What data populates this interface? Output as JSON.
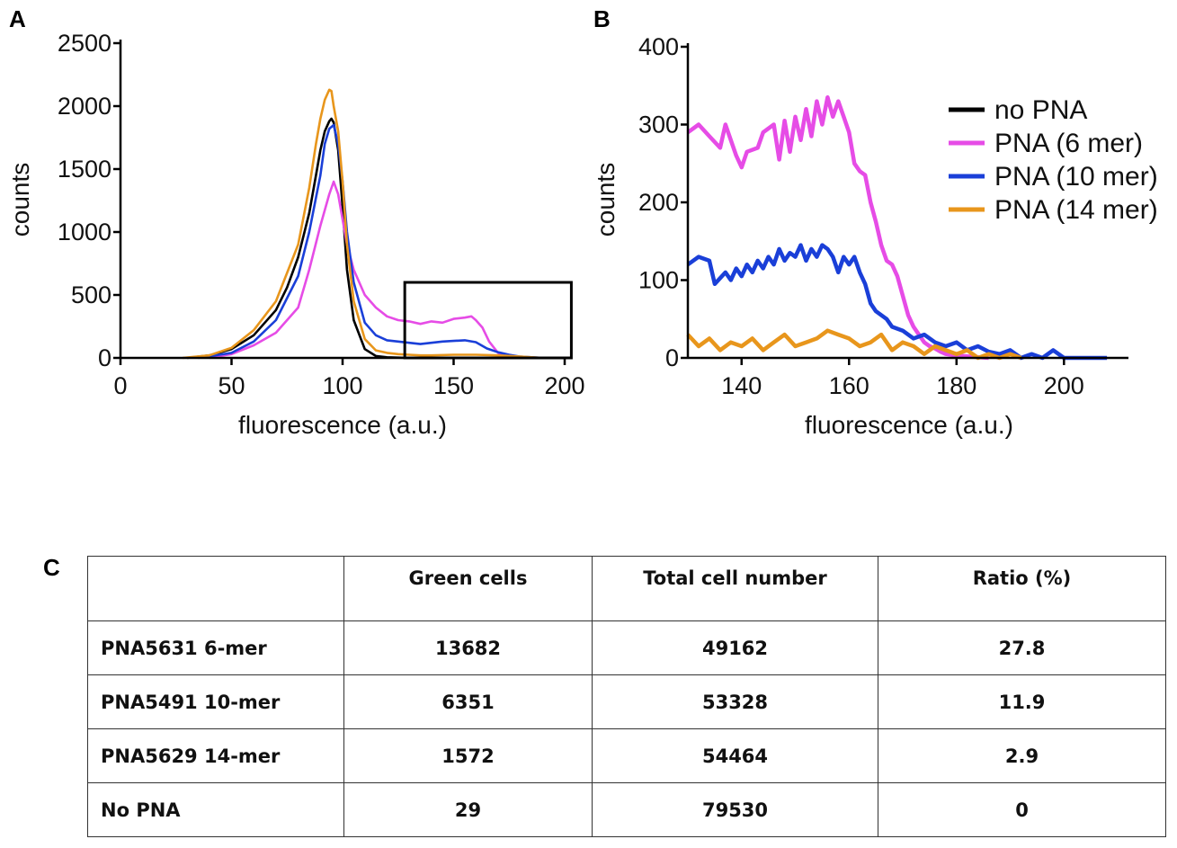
{
  "panels": {
    "a": "A",
    "b": "B",
    "c": "C"
  },
  "colors": {
    "no_pna": "#000000",
    "pna6": "#e64ce6",
    "pna10": "#1a3fd8",
    "pna14": "#e8961c"
  },
  "chart_data": [
    {
      "type": "line",
      "panel": "A",
      "title": "",
      "xlabel": "fluorescence (a.u.)",
      "ylabel": "counts",
      "xlim": [
        0,
        200
      ],
      "ylim": [
        0,
        2500
      ],
      "xticks": [
        0,
        50,
        100,
        150,
        200
      ],
      "yticks": [
        0,
        500,
        1000,
        1500,
        2000,
        2500
      ],
      "inset_box": {
        "x": [
          128,
          203
        ],
        "y": [
          0,
          600
        ]
      },
      "series": [
        {
          "name": "no PNA",
          "color": "#000000",
          "x": [
            30,
            40,
            50,
            60,
            70,
            75,
            80,
            85,
            88,
            90,
            92,
            94,
            95,
            96,
            98,
            100,
            102,
            105,
            110,
            115,
            120,
            125,
            130,
            140,
            150
          ],
          "y": [
            0,
            20,
            70,
            180,
            380,
            560,
            800,
            1150,
            1450,
            1650,
            1800,
            1880,
            1900,
            1870,
            1650,
            1200,
            700,
            300,
            70,
            15,
            5,
            2,
            0,
            0,
            0
          ]
        },
        {
          "name": "PNA (6 mer)",
          "color": "#e64ce6",
          "x": [
            40,
            50,
            60,
            70,
            80,
            85,
            90,
            94,
            96,
            98,
            100,
            102,
            105,
            110,
            115,
            120,
            125,
            130,
            135,
            140,
            145,
            150,
            155,
            158,
            160,
            163,
            166,
            170,
            175,
            180
          ],
          "y": [
            0,
            30,
            100,
            200,
            400,
            700,
            1050,
            1300,
            1400,
            1300,
            1100,
            900,
            700,
            500,
            400,
            330,
            300,
            290,
            270,
            290,
            280,
            310,
            320,
            330,
            300,
            240,
            130,
            40,
            5,
            0
          ]
        },
        {
          "name": "PNA (10 mer)",
          "color": "#1a3fd8",
          "x": [
            35,
            50,
            60,
            70,
            80,
            85,
            90,
            92,
            94,
            96,
            98,
            100,
            102,
            105,
            110,
            115,
            120,
            125,
            130,
            135,
            140,
            145,
            150,
            155,
            160,
            165,
            170,
            175,
            180,
            190,
            205
          ],
          "y": [
            0,
            40,
            130,
            300,
            650,
            1000,
            1450,
            1700,
            1820,
            1850,
            1700,
            1400,
            1000,
            600,
            280,
            180,
            140,
            130,
            120,
            110,
            120,
            130,
            135,
            140,
            125,
            75,
            45,
            25,
            10,
            0,
            0
          ]
        },
        {
          "name": "PNA (14 mer)",
          "color": "#e8961c",
          "x": [
            28,
            40,
            50,
            60,
            70,
            80,
            85,
            88,
            90,
            92,
            94,
            95,
            96,
            98,
            100,
            102,
            105,
            110,
            115,
            120,
            125,
            130,
            135,
            140,
            150,
            160,
            170,
            180,
            190
          ],
          "y": [
            0,
            20,
            80,
            220,
            450,
            900,
            1350,
            1700,
            1900,
            2050,
            2130,
            2120,
            2000,
            1800,
            1400,
            900,
            450,
            150,
            60,
            40,
            30,
            25,
            20,
            20,
            25,
            25,
            20,
            10,
            0
          ]
        }
      ]
    },
    {
      "type": "line",
      "panel": "B",
      "title": "",
      "xlabel": "fluorescence (a.u.)",
      "ylabel": "counts",
      "xlim": [
        130,
        212
      ],
      "ylim": [
        0,
        400
      ],
      "xticks": [
        140,
        160,
        180,
        200
      ],
      "yticks": [
        0,
        100,
        200,
        300,
        400
      ],
      "legend": "top-right",
      "series": [
        {
          "name": "no PNA",
          "color": "#000000",
          "x": [],
          "y": []
        },
        {
          "name": "PNA (6 mer)",
          "color": "#e64ce6",
          "x": [
            130,
            132,
            134,
            136,
            137,
            139,
            140,
            141,
            143,
            144,
            146,
            147,
            148,
            149,
            150,
            151,
            152,
            153,
            154,
            155,
            156,
            157,
            158,
            159,
            160,
            161,
            162,
            163,
            164,
            165,
            166,
            167,
            168,
            169,
            170,
            171,
            172,
            173,
            174,
            175,
            176,
            177,
            178,
            180,
            182,
            184,
            186
          ],
          "y": [
            290,
            300,
            285,
            270,
            300,
            260,
            245,
            265,
            270,
            290,
            300,
            255,
            305,
            265,
            310,
            280,
            320,
            285,
            330,
            300,
            335,
            310,
            330,
            310,
            290,
            250,
            240,
            235,
            200,
            175,
            145,
            125,
            120,
            105,
            80,
            55,
            40,
            30,
            20,
            15,
            12,
            8,
            5,
            3,
            2,
            1,
            0
          ]
        },
        {
          "name": "PNA (10 mer)",
          "color": "#1a3fd8",
          "x": [
            130,
            132,
            134,
            135,
            137,
            138,
            139,
            140,
            141,
            142,
            143,
            144,
            145,
            146,
            147,
            148,
            149,
            150,
            151,
            152,
            153,
            154,
            155,
            156,
            157,
            158,
            159,
            160,
            161,
            162,
            163,
            164,
            165,
            166,
            167,
            168,
            170,
            172,
            174,
            176,
            178,
            180,
            182,
            184,
            186,
            188,
            190,
            192,
            194,
            196,
            198,
            200,
            202,
            204,
            208
          ],
          "y": [
            120,
            130,
            125,
            95,
            110,
            100,
            115,
            105,
            120,
            110,
            125,
            115,
            130,
            120,
            140,
            125,
            135,
            130,
            145,
            125,
            140,
            130,
            145,
            140,
            130,
            110,
            130,
            120,
            130,
            110,
            95,
            70,
            60,
            55,
            50,
            40,
            35,
            25,
            30,
            20,
            15,
            20,
            10,
            15,
            8,
            5,
            10,
            0,
            5,
            0,
            10,
            0,
            0,
            0,
            0
          ]
        },
        {
          "name": "PNA (14 mer)",
          "color": "#e8961c",
          "x": [
            130,
            132,
            134,
            136,
            138,
            140,
            142,
            144,
            146,
            148,
            150,
            152,
            154,
            156,
            158,
            160,
            162,
            164,
            166,
            168,
            170,
            172,
            174,
            176,
            178,
            180,
            182,
            184,
            186,
            188,
            190,
            192
          ],
          "y": [
            30,
            15,
            25,
            10,
            20,
            15,
            25,
            10,
            20,
            30,
            15,
            20,
            25,
            35,
            30,
            25,
            15,
            20,
            30,
            10,
            20,
            15,
            5,
            15,
            10,
            5,
            10,
            0,
            5,
            0,
            5,
            0
          ]
        }
      ]
    },
    {
      "type": "table",
      "panel": "C",
      "columns": [
        "",
        "Green cells",
        "Total cell number",
        "Ratio (%)"
      ],
      "rows": [
        {
          "label": "PNA5631 6-mer",
          "green": "13682",
          "total": "49162",
          "ratio": "27.8"
        },
        {
          "label": "PNA5491 10-mer",
          "green": "6351",
          "total": "53328",
          "ratio": "11.9"
        },
        {
          "label": "PNA5629 14-mer",
          "green": "1572",
          "total": "54464",
          "ratio": "2.9"
        },
        {
          "label": "No PNA",
          "green": "29",
          "total": "79530",
          "ratio": "0"
        }
      ]
    }
  ]
}
